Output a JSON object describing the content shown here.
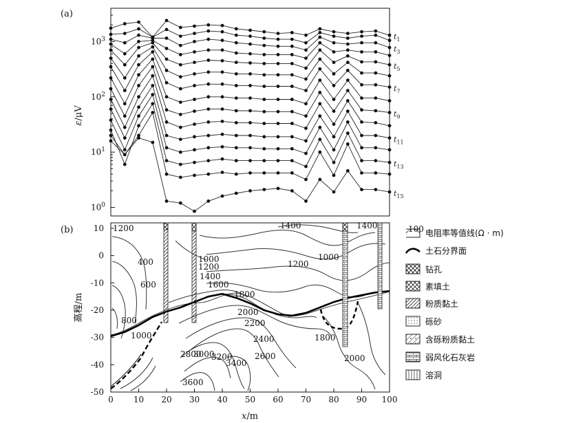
{
  "chart_data": [
    {
      "panel_label": "(a)",
      "type": "line",
      "ylabel_var": "ε",
      "ylabel_unit": "/μV",
      "y_scale": "log",
      "ylim": [
        0.7,
        4000
      ],
      "y_ticks": [
        {
          "value": 1,
          "base": "10",
          "exp": "0"
        },
        {
          "value": 10,
          "base": "10",
          "exp": "1"
        },
        {
          "value": 100,
          "base": "10",
          "exp": "2"
        },
        {
          "value": 1000,
          "base": "10",
          "exp": "3"
        }
      ],
      "x": [
        0,
        5,
        10,
        15,
        20,
        25,
        30,
        35,
        40,
        45,
        50,
        55,
        60,
        65,
        70,
        75,
        80,
        85,
        90,
        95,
        100
      ],
      "series": [
        {
          "name": "t",
          "sub": "1",
          "values": [
            1750,
            2100,
            2250,
            1200,
            2400,
            1800,
            1900,
            2000,
            1950,
            1700,
            1600,
            1500,
            1400,
            1450,
            1300,
            1700,
            1500,
            1400,
            1500,
            1550,
            1300
          ]
        },
        {
          "name": "",
          "sub": "",
          "values": [
            1350,
            1400,
            1700,
            1200,
            1650,
            1250,
            1400,
            1550,
            1500,
            1300,
            1250,
            1150,
            1100,
            1100,
            950,
            1450,
            1250,
            1150,
            1250,
            1300,
            1050
          ]
        },
        {
          "name": "t",
          "sub": "3",
          "values": [
            1100,
            950,
            1300,
            1150,
            1150,
            850,
            1000,
            1100,
            1050,
            950,
            900,
            850,
            820,
            820,
            700,
            1200,
            950,
            900,
            950,
            950,
            780
          ]
        },
        {
          "name": "",
          "sub": "",
          "values": [
            900,
            600,
            1000,
            1050,
            750,
            580,
            650,
            700,
            700,
            620,
            600,
            580,
            580,
            580,
            500,
            950,
            650,
            700,
            650,
            650,
            560
          ]
        },
        {
          "name": "t",
          "sub": "5",
          "values": [
            700,
            380,
            780,
            950,
            480,
            380,
            420,
            460,
            450,
            420,
            410,
            400,
            400,
            400,
            330,
            700,
            420,
            550,
            430,
            430,
            380
          ]
        },
        {
          "name": "",
          "sub": "",
          "values": [
            500,
            220,
            550,
            800,
            300,
            230,
            260,
            280,
            280,
            260,
            260,
            250,
            250,
            250,
            210,
            480,
            260,
            420,
            270,
            270,
            240
          ]
        },
        {
          "name": "t",
          "sub": "7",
          "values": [
            350,
            130,
            380,
            650,
            180,
            140,
            160,
            170,
            170,
            160,
            160,
            155,
            155,
            155,
            130,
            320,
            160,
            300,
            165,
            165,
            150
          ]
        },
        {
          "name": "",
          "sub": "",
          "values": [
            220,
            75,
            250,
            480,
            100,
            80,
            90,
            100,
            100,
            95,
            95,
            90,
            90,
            90,
            75,
            200,
            90,
            200,
            95,
            95,
            85
          ]
        },
        {
          "name": "t",
          "sub": "9",
          "values": [
            140,
            45,
            160,
            350,
            58,
            48,
            55,
            60,
            60,
            56,
            56,
            54,
            54,
            54,
            45,
            120,
            55,
            130,
            58,
            56,
            52
          ]
        },
        {
          "name": "",
          "sub": "",
          "values": [
            90,
            28,
            100,
            240,
            35,
            28,
            32,
            35,
            36,
            34,
            34,
            33,
            33,
            33,
            27,
            75,
            32,
            85,
            35,
            34,
            30
          ]
        },
        {
          "name": "t",
          "sub": "11",
          "values": [
            60,
            18,
            65,
            160,
            20,
            17,
            19,
            20,
            21,
            20,
            20,
            19,
            19,
            19,
            16,
            45,
            19,
            55,
            20,
            20,
            18
          ]
        },
        {
          "name": "",
          "sub": "",
          "values": [
            38,
            11,
            45,
            110,
            12,
            10,
            11,
            12,
            12.5,
            12,
            12,
            11.5,
            11.5,
            11.5,
            9.5,
            28,
            11,
            35,
            12,
            12,
            11
          ]
        },
        {
          "name": "t",
          "sub": "13",
          "values": [
            25,
            6,
            30,
            75,
            7,
            6,
            6.5,
            7,
            7.5,
            7,
            7,
            7,
            7,
            7,
            5.5,
            17,
            6.5,
            22,
            7,
            7,
            6.5
          ]
        },
        {
          "name": "",
          "sub": "",
          "values": [
            16,
            9,
            20,
            52,
            4,
            3.5,
            3.8,
            4,
            4.3,
            4,
            4.2,
            4.2,
            4.2,
            4.2,
            3.2,
            10,
            3.8,
            14,
            4.2,
            4.2,
            4
          ]
        },
        {
          "name": "t",
          "sub": "15",
          "values": [
            20,
            9,
            18,
            15,
            1.3,
            1.2,
            0.85,
            1.3,
            1.6,
            1.8,
            2,
            2.1,
            2.2,
            2,
            1.3,
            3.2,
            1.9,
            4.6,
            2.1,
            2.1,
            1.9
          ]
        }
      ]
    },
    {
      "panel_label": "(b)",
      "type": "contour",
      "xlabel_var": "x",
      "xlabel_unit": "/m",
      "ylabel": "高程/m",
      "xlim": [
        0,
        100
      ],
      "ylim": [
        -50,
        12
      ],
      "x_ticks": [
        "0",
        "10",
        "20",
        "30",
        "40",
        "50",
        "60",
        "70",
        "80",
        "90",
        "100"
      ],
      "y_ticks": [
        "10",
        "0",
        "-10",
        "-20",
        "-30",
        "-40",
        "-50"
      ],
      "contour_labels": [
        "1200",
        "1400",
        "1400",
        "400",
        "1000",
        "1200",
        "600",
        "1200",
        "1000",
        "1400",
        "1600",
        "1800",
        "800",
        "2000",
        "2200",
        "1800",
        "1000",
        "2400",
        "2600",
        "2000",
        "2800",
        "3000",
        "3200",
        "3400",
        "3600"
      ],
      "soil_rock_interface": {
        "x": [
          0,
          5,
          10,
          15,
          20,
          25,
          30,
          35,
          40,
          45,
          50,
          55,
          60,
          65,
          70,
          75,
          80,
          85,
          90,
          95,
          100
        ],
        "y": [
          -29.5,
          -28,
          -25.5,
          -22.5,
          -20.5,
          -19,
          -17,
          -15,
          -14,
          -15.5,
          -17.5,
          -20,
          -21.5,
          -22,
          -21,
          -19,
          -17,
          -15.5,
          -14.5,
          -13.5,
          -13
        ]
      },
      "boreholes_x": [
        20,
        30,
        84.5,
        97.5
      ]
    }
  ],
  "legend": {
    "items": [
      {
        "swatch": "contour",
        "label": "电阻率等值线(Ω · m)"
      },
      {
        "swatch": "interface",
        "label": "土石分界面"
      },
      {
        "swatch": "borehole",
        "label": "钻孔"
      },
      {
        "swatch": "fill",
        "label": "素填土"
      },
      {
        "swatch": "silty-clay",
        "label": "粉质黏土"
      },
      {
        "swatch": "gravel-sand",
        "label": "砾砂"
      },
      {
        "swatch": "gravelly-clay",
        "label": "含砾粉质黏土"
      },
      {
        "swatch": "limestone",
        "label": "弱风化石灰岩"
      },
      {
        "swatch": "karst-cave",
        "label": "溶洞"
      }
    ],
    "contour_sample": "100"
  }
}
